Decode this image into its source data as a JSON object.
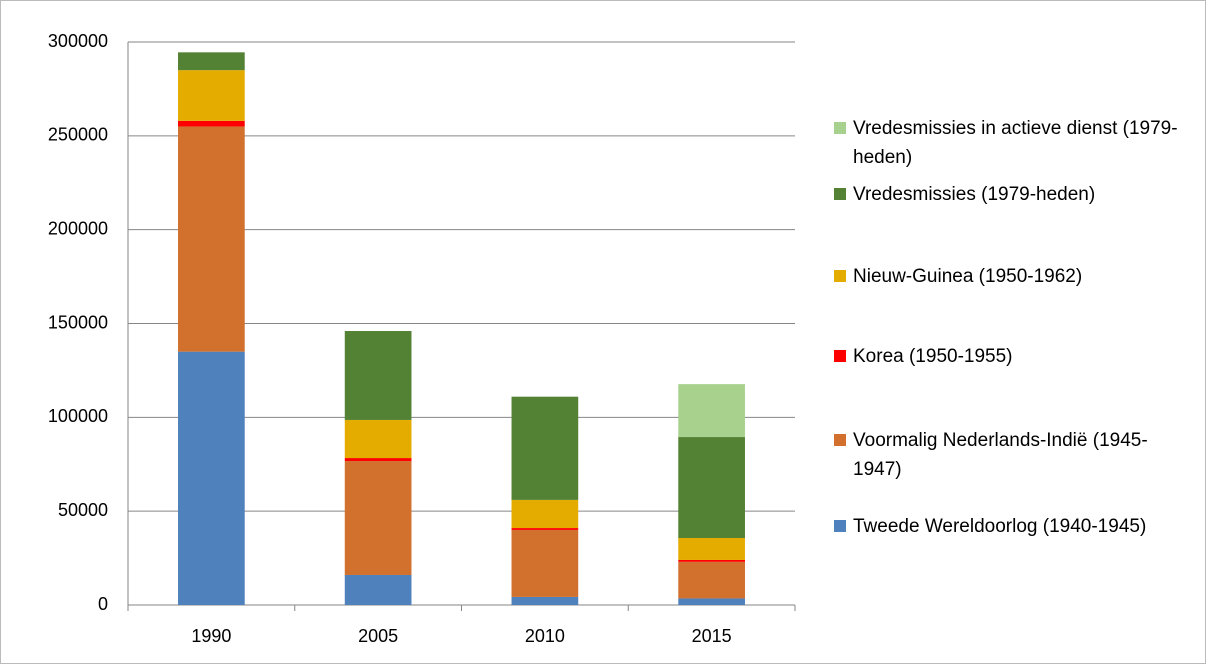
{
  "chart_data": {
    "type": "stacked_bar",
    "categories": [
      "1990",
      "2005",
      "2010",
      "2015"
    ],
    "series": [
      {
        "name": "Tweede Wereldoorlog (1940-1945)",
        "color": "#4f81bd",
        "values": [
          135000,
          16000,
          4300,
          3500
        ]
      },
      {
        "name": "Voormalig Nederlands-Indië (1945-1947)",
        "color": "#d2702d",
        "values": [
          120000,
          60700,
          35700,
          19500
        ]
      },
      {
        "name": "Korea (1950-1955)",
        "color": "#ff0000",
        "values": [
          3000,
          1600,
          1000,
          1000
        ]
      },
      {
        "name": "Nieuw-Guinea (1950-1962)",
        "color": "#e5ac00",
        "values": [
          27000,
          20300,
          15000,
          11700
        ]
      },
      {
        "name": "Vredesmissies (1979-heden)",
        "color": "#548235",
        "values": [
          9500,
          47400,
          55000,
          53800
        ]
      },
      {
        "name": "Vredesmissies in actieve dienst (1979-heden)",
        "color": "#a9d18e",
        "values": [
          0,
          0,
          0,
          28200
        ]
      }
    ],
    "ylim": [
      0,
      300000
    ],
    "yticks": [
      0,
      50000,
      100000,
      150000,
      200000,
      250000,
      300000
    ],
    "grid": true,
    "legend": "right"
  }
}
